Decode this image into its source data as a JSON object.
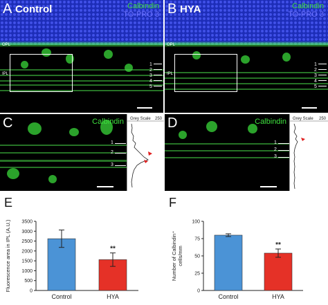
{
  "panels": {
    "A": {
      "letter": "A",
      "title": "Control",
      "stain1": "Calbindin",
      "stain2": "TO-PRO 3",
      "layer_opl": "OPL",
      "layer_ipl": "IPL",
      "strata": [
        "1",
        "2",
        "3",
        "4",
        "5"
      ]
    },
    "B": {
      "letter": "B",
      "title": "HYA",
      "stain1": "Calbindin",
      "stain2": "TO-PRO 3",
      "layer_opl": "OPL",
      "layer_ipl": "IPL",
      "strata": [
        "1",
        "2",
        "3",
        "4",
        "5"
      ]
    },
    "C": {
      "letter": "C",
      "stain": "Calbindin",
      "profile_label": "Grey Scale",
      "profile_max": "250",
      "strata": [
        "1",
        "2",
        "3"
      ]
    },
    "D": {
      "letter": "D",
      "stain": "Calbindin",
      "profile_label": "Grey Scale",
      "profile_max": "250",
      "strata": [
        "1",
        "2",
        "3"
      ]
    },
    "E": {
      "letter": "E"
    },
    "F": {
      "letter": "F"
    }
  },
  "colors": {
    "calbindin": "#3ee03e",
    "topro": "#6d73ff",
    "control_bar": "#4b93d6",
    "hya_bar": "#e53127",
    "arrow": "#e02020"
  },
  "chart_data": [
    {
      "type": "bar",
      "title": "",
      "ylabel": "Fluorescence area in IPL (A.U.)",
      "xlabel": "",
      "categories": [
        "Control",
        "HYA"
      ],
      "values": [
        2620,
        1560
      ],
      "errors": [
        440,
        340
      ],
      "ylim": [
        0,
        3500
      ],
      "yticks": [
        0,
        500,
        1000,
        1500,
        2000,
        2500,
        3000,
        3500
      ],
      "significance": [
        "",
        "**"
      ]
    },
    {
      "type": "bar",
      "title": "",
      "ylabel": "Number of Calbindin⁺ cells/mm",
      "xlabel": "",
      "categories": [
        "Control",
        "HYA"
      ],
      "values": [
        80,
        54
      ],
      "errors": [
        2,
        6
      ],
      "ylim": [
        0,
        100
      ],
      "yticks": [
        0,
        25,
        50,
        75,
        100
      ],
      "significance": [
        "",
        "**"
      ]
    }
  ]
}
